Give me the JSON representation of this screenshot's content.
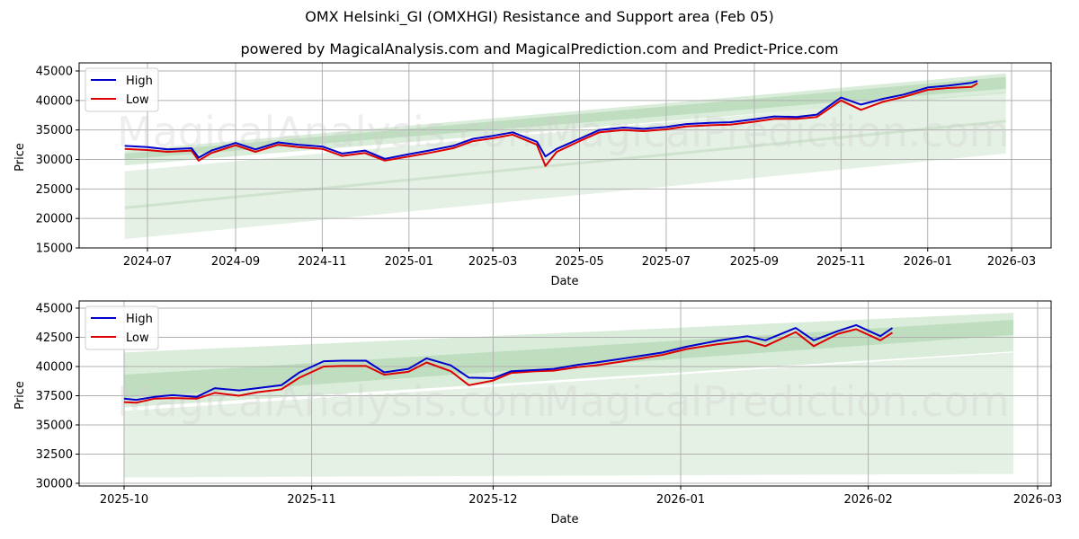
{
  "header": {
    "title": "OMX Helsinki_GI (OMXHGI) Resistance and Support area (Feb 05)",
    "subtitle": "powered by MagicalAnalysis.com and MagicalPrediction.com and Predict-Price.com"
  },
  "watermarks": [
    "MagicalAnalysis.com",
    "MagicalPrediction.com"
  ],
  "colors": {
    "high": "#0000cc",
    "low": "#dd0000",
    "band_light": "#e4f0e4",
    "band_mid": "#cfe6cf",
    "band_dark": "#b5dab5",
    "grid": "#b0b0b0"
  },
  "chart_data": [
    {
      "type": "line",
      "title": "Full history",
      "xlabel": "Date",
      "ylabel": "Price",
      "ylim": [
        15000,
        45000
      ],
      "yticks": [
        15000,
        20000,
        25000,
        30000,
        35000,
        40000,
        45000
      ],
      "xticks": [
        "2024-07",
        "2024-09",
        "2024-11",
        "2025-01",
        "2025-03",
        "2025-05",
        "2025-07",
        "2025-09",
        "2025-11",
        "2026-01",
        "2026-03"
      ],
      "grid": true,
      "legend": {
        "position": "upper left",
        "entries": [
          "High",
          "Low"
        ]
      },
      "x": [
        "2024-06-15",
        "2024-07-01",
        "2024-07-15",
        "2024-08-01",
        "2024-08-06",
        "2024-08-15",
        "2024-09-01",
        "2024-09-15",
        "2024-10-01",
        "2024-10-15",
        "2024-11-01",
        "2024-11-15",
        "2024-12-01",
        "2024-12-15",
        "2025-01-01",
        "2025-01-15",
        "2025-02-01",
        "2025-02-15",
        "2025-03-01",
        "2025-03-15",
        "2025-04-01",
        "2025-04-07",
        "2025-04-15",
        "2025-05-01",
        "2025-05-15",
        "2025-06-01",
        "2025-06-15",
        "2025-07-01",
        "2025-07-15",
        "2025-08-01",
        "2025-08-15",
        "2025-09-01",
        "2025-09-15",
        "2025-10-01",
        "2025-10-15",
        "2025-11-01",
        "2025-11-15",
        "2025-12-01",
        "2025-12-15",
        "2026-01-01",
        "2026-01-15",
        "2026-02-01",
        "2026-02-05"
      ],
      "series": [
        {
          "name": "High",
          "color": "#0000cc",
          "values": [
            32300,
            32100,
            31700,
            31900,
            30300,
            31500,
            32800,
            31700,
            32900,
            32500,
            32200,
            31000,
            31500,
            30100,
            30900,
            31500,
            32300,
            33500,
            34000,
            34600,
            33000,
            30500,
            31800,
            33500,
            35000,
            35400,
            35200,
            35500,
            36000,
            36200,
            36300,
            36800,
            37300,
            37200,
            37600,
            40500,
            39300,
            40300,
            41000,
            42200,
            42500,
            43000,
            43300
          ]
        },
        {
          "name": "Low",
          "color": "#dd0000",
          "values": [
            31800,
            31600,
            31300,
            31500,
            29800,
            31100,
            32400,
            31300,
            32500,
            32100,
            31800,
            30600,
            31100,
            29800,
            30500,
            31100,
            31900,
            33100,
            33600,
            34200,
            32500,
            28900,
            31300,
            33100,
            34600,
            35000,
            34800,
            35100,
            35600,
            35800,
            35900,
            36400,
            36900,
            36900,
            37200,
            40000,
            38400,
            39800,
            40600,
            41800,
            42100,
            42300,
            42900
          ]
        }
      ],
      "bands": [
        {
          "name": "outer_support",
          "x_start": "2024-06-15",
          "x_end": "2026-02-25",
          "lower_start": 16500,
          "lower_end": 31000,
          "upper_start": 28000,
          "upper_end": 41500
        },
        {
          "name": "mid_band",
          "x_start": "2024-06-15",
          "x_end": "2026-02-25",
          "lower_start": 29000,
          "lower_end": 41200,
          "upper_start": 31500,
          "upper_end": 44600
        },
        {
          "name": "core_band",
          "x_start": "2024-06-15",
          "x_end": "2026-02-25",
          "lower_start": 30000,
          "lower_end": 42000,
          "upper_start": 31000,
          "upper_end": 44000
        },
        {
          "name": "trend_line",
          "x_start": "2024-06-15",
          "x_end": "2026-02-25",
          "start": 21800,
          "end": 36500
        }
      ]
    },
    {
      "type": "line",
      "title": "Recent (zoomed)",
      "xlabel": "Date",
      "ylabel": "Price",
      "ylim": [
        29800,
        45300
      ],
      "yticks": [
        30000,
        32500,
        35000,
        37500,
        40000,
        42500,
        45000
      ],
      "xticks": [
        "2025-10",
        "2025-11",
        "2025-12",
        "2026-01",
        "2026-02",
        "2026-03"
      ],
      "grid": true,
      "legend": {
        "position": "upper left",
        "entries": [
          "High",
          "Low"
        ]
      },
      "x": [
        "2025-10-01",
        "2025-10-03",
        "2025-10-06",
        "2025-10-09",
        "2025-10-13",
        "2025-10-16",
        "2025-10-20",
        "2025-10-23",
        "2025-10-27",
        "2025-10-30",
        "2025-11-03",
        "2025-11-06",
        "2025-11-10",
        "2025-11-13",
        "2025-11-17",
        "2025-11-20",
        "2025-11-24",
        "2025-11-27",
        "2025-12-01",
        "2025-12-04",
        "2025-12-08",
        "2025-12-11",
        "2025-12-15",
        "2025-12-18",
        "2025-12-22",
        "2025-12-29",
        "2026-01-02",
        "2026-01-07",
        "2026-01-12",
        "2026-01-15",
        "2026-01-20",
        "2026-01-23",
        "2026-01-27",
        "2026-01-30",
        "2026-02-03",
        "2026-02-05"
      ],
      "series": [
        {
          "name": "High",
          "color": "#0000cc",
          "values": [
            37250,
            37150,
            37400,
            37550,
            37400,
            38150,
            37950,
            38150,
            38400,
            39500,
            40450,
            40500,
            40500,
            39500,
            39800,
            40700,
            40100,
            39050,
            39000,
            39600,
            39700,
            39800,
            40150,
            40350,
            40650,
            41200,
            41700,
            42200,
            42600,
            42250,
            43300,
            42250,
            43050,
            43550,
            42600,
            43300
          ]
        },
        {
          "name": "Low",
          "color": "#dd0000",
          "values": [
            36950,
            36900,
            37250,
            37300,
            37250,
            37750,
            37500,
            37800,
            38050,
            39050,
            40000,
            40050,
            40050,
            39300,
            39550,
            40350,
            39600,
            38400,
            38800,
            39450,
            39600,
            39650,
            39950,
            40100,
            40400,
            41000,
            41500,
            41900,
            42200,
            41750,
            42950,
            41750,
            42800,
            43200,
            42250,
            42900
          ]
        }
      ],
      "bands": [
        {
          "name": "outer_support",
          "x_start": "2025-10-01",
          "x_end": "2026-02-25",
          "lower_start": 30500,
          "lower_end": 30800,
          "upper_start": 36200,
          "upper_end": 41200
        },
        {
          "name": "mid_band",
          "x_start": "2025-10-01",
          "x_end": "2026-02-25",
          "lower_start": 36500,
          "lower_end": 41300,
          "upper_start": 41200,
          "upper_end": 44600
        },
        {
          "name": "core_band",
          "x_start": "2025-10-01",
          "x_end": "2026-02-25",
          "lower_start": 37300,
          "lower_end": 42700,
          "upper_start": 39300,
          "upper_end": 44000
        }
      ]
    }
  ]
}
